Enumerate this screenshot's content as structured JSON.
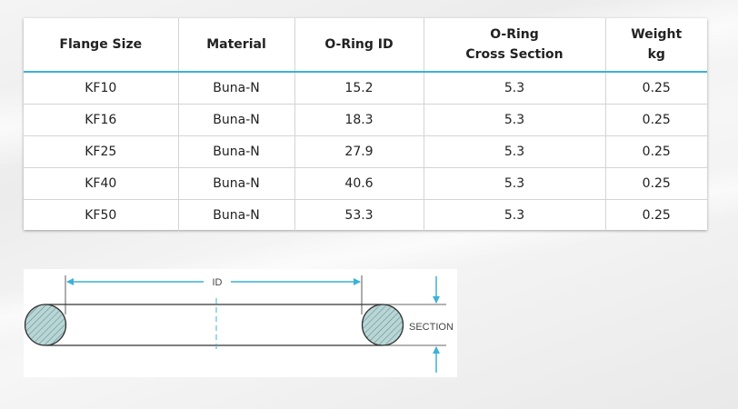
{
  "table": {
    "headers": [
      {
        "lines": [
          "Flange Size"
        ]
      },
      {
        "lines": [
          "Material"
        ]
      },
      {
        "lines": [
          "O-Ring ID"
        ]
      },
      {
        "lines": [
          "O-Ring",
          "Cross Section"
        ]
      },
      {
        "lines": [
          "Weight",
          "kg"
        ]
      }
    ],
    "rows": [
      [
        "KF10",
        "Buna-N",
        "15.2",
        "5.3",
        "0.25"
      ],
      [
        "KF16",
        "Buna-N",
        "18.3",
        "5.3",
        "0.25"
      ],
      [
        "KF25",
        "Buna-N",
        "27.9",
        "5.3",
        "0.25"
      ],
      [
        "KF40",
        "Buna-N",
        "40.6",
        "5.3",
        "0.25"
      ],
      [
        "KF50",
        "Buna-N",
        "53.3",
        "5.3",
        "0.25"
      ]
    ]
  },
  "diagram": {
    "id_label": "ID",
    "section_label": "SECTION",
    "colors": {
      "accent": "#3bb1d8",
      "section_fill": "#b9d6d6",
      "line": "#333333"
    }
  }
}
